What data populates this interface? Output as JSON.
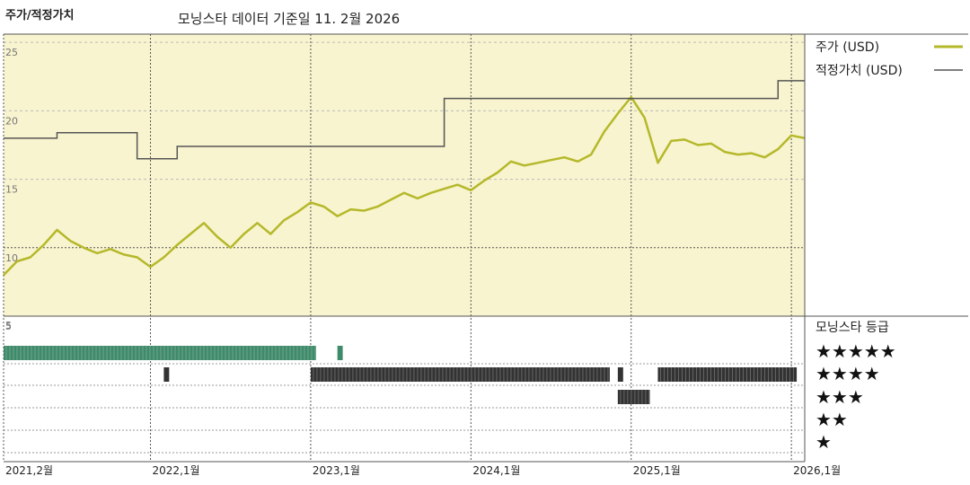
{
  "header": {
    "title": "주가/적정가치",
    "subtitle": "모닝스타 데이터 기준일 11. 2월 2026"
  },
  "colors": {
    "price": "#b5b82a",
    "fair_value": "#555555",
    "panel_bg": "#f8f4cf",
    "rating_5": "#3f8a6a",
    "rating_4": "#333333",
    "rating_3": "#333333"
  },
  "chart_data": [
    {
      "type": "line",
      "title": "",
      "xlabel": "",
      "ylabel": "",
      "ylim": [
        5,
        25.6
      ],
      "y_ticks": [
        5,
        10,
        15,
        20,
        25
      ],
      "x_tick_labels": [
        "2021,2월",
        "2022,1월",
        "2023,1월",
        "2024,1월",
        "2025,1월",
        "2026,1월"
      ],
      "x_tick_dates": [
        "2021-02",
        "2022-01",
        "2023-01",
        "2024-01",
        "2025-01",
        "2026-01"
      ],
      "xlim": [
        "2021-02",
        "2026-02"
      ],
      "grid": true,
      "legend_position": "right",
      "series": [
        {
          "name": "주가 (USD)",
          "points": [
            [
              "2021-02",
              8.0
            ],
            [
              "2021-03",
              9.0
            ],
            [
              "2021-04",
              9.3
            ],
            [
              "2021-05",
              10.2
            ],
            [
              "2021-06",
              11.3
            ],
            [
              "2021-07",
              10.5
            ],
            [
              "2021-08",
              10.0
            ],
            [
              "2021-09",
              9.6
            ],
            [
              "2021-10",
              9.9
            ],
            [
              "2021-11",
              9.5
            ],
            [
              "2021-12",
              9.3
            ],
            [
              "2022-01",
              8.6
            ],
            [
              "2022-02",
              9.3
            ],
            [
              "2022-03",
              10.2
            ],
            [
              "2022-04",
              11.0
            ],
            [
              "2022-05",
              11.8
            ],
            [
              "2022-06",
              10.8
            ],
            [
              "2022-07",
              10.0
            ],
            [
              "2022-08",
              11.0
            ],
            [
              "2022-09",
              11.8
            ],
            [
              "2022-10",
              11.0
            ],
            [
              "2022-11",
              12.0
            ],
            [
              "2022-12",
              12.6
            ],
            [
              "2023-01",
              13.3
            ],
            [
              "2023-02",
              13.0
            ],
            [
              "2023-03",
              12.3
            ],
            [
              "2023-04",
              12.8
            ],
            [
              "2023-05",
              12.7
            ],
            [
              "2023-06",
              13.0
            ],
            [
              "2023-07",
              13.5
            ],
            [
              "2023-08",
              14.0
            ],
            [
              "2023-09",
              13.6
            ],
            [
              "2023-10",
              14.0
            ],
            [
              "2023-11",
              14.3
            ],
            [
              "2023-12",
              14.6
            ],
            [
              "2024-01",
              14.2
            ],
            [
              "2024-02",
              14.9
            ],
            [
              "2024-03",
              15.5
            ],
            [
              "2024-04",
              16.3
            ],
            [
              "2024-05",
              16.0
            ],
            [
              "2024-06",
              16.2
            ],
            [
              "2024-07",
              16.4
            ],
            [
              "2024-08",
              16.6
            ],
            [
              "2024-09",
              16.3
            ],
            [
              "2024-10",
              16.8
            ],
            [
              "2024-11",
              18.5
            ],
            [
              "2024-12",
              19.8
            ],
            [
              "2025-01",
              21.0
            ],
            [
              "2025-02",
              19.5
            ],
            [
              "2025-03",
              16.2
            ],
            [
              "2025-04",
              17.8
            ],
            [
              "2025-05",
              17.9
            ],
            [
              "2025-06",
              17.5
            ],
            [
              "2025-07",
              17.6
            ],
            [
              "2025-08",
              17.0
            ],
            [
              "2025-09",
              16.8
            ],
            [
              "2025-10",
              16.9
            ],
            [
              "2025-11",
              16.6
            ],
            [
              "2025-12",
              17.2
            ],
            [
              "2026-01",
              18.2
            ],
            [
              "2026-02",
              18.0
            ]
          ]
        },
        {
          "name": "적정가치 (USD)",
          "step": true,
          "points": [
            [
              "2021-02",
              18.0
            ],
            [
              "2021-06",
              18.4
            ],
            [
              "2021-12",
              16.5
            ],
            [
              "2022-03",
              17.4
            ],
            [
              "2023-08",
              17.4
            ],
            [
              "2023-11",
              20.9
            ],
            [
              "2025-12",
              22.2
            ],
            [
              "2026-02",
              22.2
            ]
          ]
        }
      ]
    },
    {
      "type": "timeline",
      "title": "모닝스타 등급",
      "rating_labels": [
        "★★★★★",
        "★★★★",
        "★★★",
        "★★",
        "★"
      ],
      "segments": [
        {
          "rating": 5,
          "start": "2021-02",
          "end": "2023-01"
        },
        {
          "rating": 5,
          "start": "2023-03",
          "end": "2023-03"
        },
        {
          "rating": 4,
          "start": "2022-02",
          "end": "2022-02"
        },
        {
          "rating": 4,
          "start": "2023-01",
          "end": "2024-11"
        },
        {
          "rating": 4,
          "start": "2024-12",
          "end": "2024-12"
        },
        {
          "rating": 4,
          "start": "2025-03",
          "end": "2026-01"
        },
        {
          "rating": 3,
          "start": "2024-12",
          "end": "2025-02"
        }
      ]
    }
  ]
}
